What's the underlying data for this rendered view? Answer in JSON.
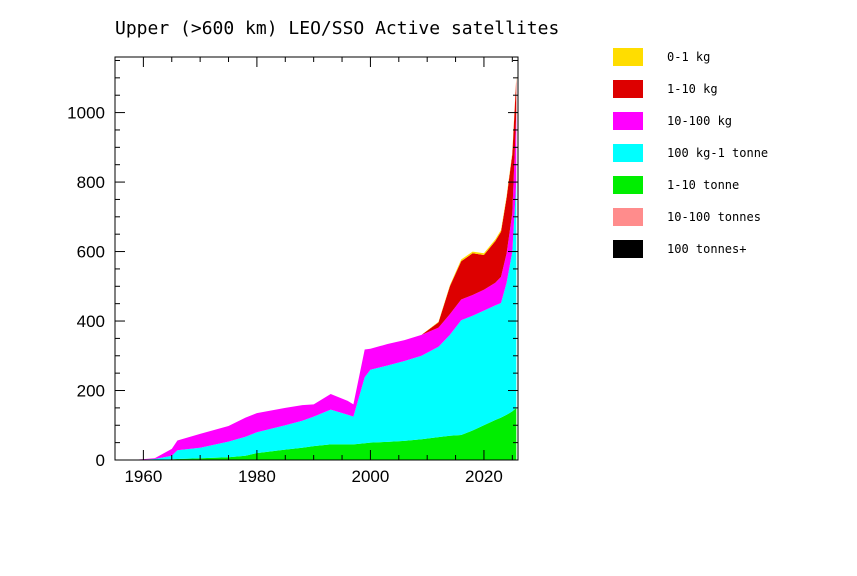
{
  "chart_data": {
    "type": "area",
    "title": "Upper (>600 km) LEO/SSO Active satellites",
    "xlabel": "",
    "ylabel": "",
    "xlim": [
      1955,
      2026
    ],
    "ylim": [
      0,
      1160
    ],
    "x_ticks": [
      1960,
      1980,
      2000,
      2020
    ],
    "y_ticks": [
      0,
      200,
      400,
      600,
      800,
      1000
    ],
    "grid": false,
    "legend_position": "right",
    "x": [
      1958,
      1962,
      1965,
      1966,
      1970,
      1975,
      1978,
      1980,
      1985,
      1988,
      1990,
      1993,
      1996,
      1997,
      1999,
      2000,
      2003,
      2006,
      2009,
      2012,
      2014,
      2016,
      2018,
      2020,
      2022,
      2023,
      2024,
      2025,
      2025.7
    ],
    "series": [
      {
        "name": "100 tonnes+",
        "color": "#000000",
        "values": [
          0,
          0,
          0,
          0,
          0,
          0,
          0,
          0,
          0,
          0,
          0,
          0,
          0,
          0,
          0,
          0,
          0,
          0,
          0,
          0,
          0,
          0,
          0,
          0,
          0,
          0,
          0,
          0,
          0
        ]
      },
      {
        "name": "10-100 tonnes",
        "color": "#ff8c8c",
        "values": [
          0,
          0,
          0,
          0,
          0,
          0,
          0,
          0,
          0,
          0,
          0,
          0,
          0,
          0,
          0,
          0,
          0,
          0,
          0,
          0,
          0,
          0,
          0,
          0,
          0,
          0,
          0,
          0,
          0
        ]
      },
      {
        "name": "1-10 tonne",
        "color": "#00ee00",
        "values": [
          0,
          1,
          2,
          3,
          5,
          8,
          12,
          20,
          30,
          35,
          40,
          45,
          45,
          45,
          48,
          50,
          52,
          55,
          60,
          66,
          70,
          72,
          85,
          100,
          115,
          122,
          130,
          140,
          150
        ]
      },
      {
        "name": "100 kg-1 tonne",
        "color": "#00ffff",
        "values": [
          0,
          2,
          10,
          25,
          30,
          45,
          55,
          60,
          70,
          78,
          85,
          100,
          85,
          80,
          190,
          210,
          220,
          230,
          240,
          260,
          290,
          330,
          330,
          330,
          330,
          330,
          380,
          460,
          650
        ]
      },
      {
        "name": "10-100 kg",
        "color": "#ff00ff",
        "values": [
          0,
          2,
          20,
          28,
          40,
          45,
          55,
          55,
          50,
          45,
          35,
          45,
          40,
          35,
          80,
          60,
          62,
          60,
          60,
          55,
          60,
          60,
          60,
          60,
          65,
          75,
          85,
          110,
          200
        ]
      },
      {
        "name": "1-10 kg",
        "color": "#dd0000",
        "values": [
          0,
          0,
          0,
          0,
          0,
          0,
          0,
          0,
          0,
          0,
          0,
          0,
          0,
          0,
          0,
          0,
          0,
          0,
          0,
          15,
          80,
          110,
          120,
          100,
          120,
          130,
          160,
          170,
          100
        ]
      },
      {
        "name": "0-1 kg",
        "color": "#ffdd00",
        "values": [
          0,
          0,
          0,
          0,
          0,
          0,
          0,
          0,
          0,
          0,
          0,
          0,
          0,
          0,
          0,
          0,
          0,
          0,
          0,
          2,
          3,
          5,
          5,
          5,
          5,
          5,
          5,
          5,
          5
        ]
      }
    ]
  },
  "legend_order": [
    6,
    5,
    4,
    3,
    2,
    1,
    0
  ]
}
